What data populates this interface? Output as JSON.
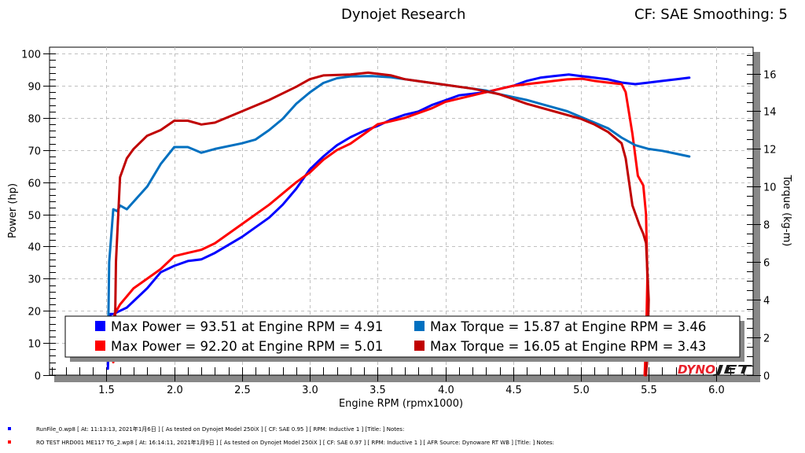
{
  "header": {
    "title": "Dynojet Research",
    "correction": "CF: SAE Smoothing: 5"
  },
  "logo": {
    "text_red": "DYNO",
    "text_black": "JET"
  },
  "chart_data": {
    "type": "line",
    "title": "Dynojet Research",
    "subtitle": "CF: SAE Smoothing: 5",
    "xlabel": "Engine RPM (rpmx1000)",
    "ylabel": "Power (hp)",
    "y2label": "Torque (kg-m)",
    "xlim": [
      1.08,
      6.27
    ],
    "ylim": [
      0,
      102
    ],
    "y2lim": [
      0,
      17.4
    ],
    "x_ticks": [
      1.5,
      2.0,
      2.5,
      3.0,
      3.5,
      4.0,
      4.5,
      5.0,
      5.5,
      6.0
    ],
    "x_tick_labels": [
      "1.5",
      "2.0",
      "2.5",
      "3.0",
      "3.5",
      "4.0",
      "4.5",
      "5.0",
      "5.5",
      "6.0"
    ],
    "y_ticks": [
      0,
      10,
      20,
      30,
      40,
      50,
      60,
      70,
      80,
      90,
      100
    ],
    "y_tick_labels": [
      "0",
      "10",
      "20",
      "30",
      "40",
      "50",
      "60",
      "70",
      "80",
      "90",
      "100"
    ],
    "y2_ticks": [
      0,
      2,
      4,
      6,
      8,
      10,
      12,
      14,
      16
    ],
    "y2_tick_labels": [
      "0",
      "2",
      "4",
      "6",
      "8",
      "10",
      "12",
      "14",
      "16"
    ],
    "grid": true,
    "legend_position": "bottom-center",
    "series": [
      {
        "name": "Power - RunFile_0",
        "axis": "left",
        "color": "#0000ff",
        "x": [
          1.51,
          1.52,
          1.53,
          1.55,
          1.6,
          1.65,
          1.7,
          1.8,
          1.9,
          2.0,
          2.1,
          2.2,
          2.3,
          2.5,
          2.7,
          2.8,
          2.9,
          3.0,
          3.1,
          3.2,
          3.3,
          3.4,
          3.5,
          3.6,
          3.7,
          3.8,
          3.9,
          4.0,
          4.1,
          4.2,
          4.3,
          4.4,
          4.5,
          4.6,
          4.7,
          4.8,
          4.91,
          5.0,
          5.1,
          5.2,
          5.3,
          5.4,
          5.5,
          5.6,
          5.7,
          5.8
        ],
        "y": [
          2,
          15,
          19,
          19,
          20,
          21,
          23,
          27,
          32,
          34,
          35.5,
          36,
          38,
          43,
          49,
          53,
          58,
          64,
          68,
          71.5,
          74,
          76,
          77.5,
          79.5,
          81,
          82,
          84,
          85.5,
          87,
          87.5,
          88,
          89,
          90,
          91.5,
          92.5,
          93,
          93.5,
          93,
          92.5,
          92,
          91,
          90.5,
          91,
          91.5,
          92,
          92.5
        ]
      },
      {
        "name": "Power - RO TEST HRD001 ME117 TG_2",
        "axis": "left",
        "color": "#ff0000",
        "x": [
          1.55,
          1.56,
          1.6,
          1.7,
          1.8,
          1.9,
          2.0,
          2.1,
          2.2,
          2.3,
          2.5,
          2.7,
          2.9,
          3.0,
          3.1,
          3.2,
          3.3,
          3.4,
          3.5,
          3.6,
          3.7,
          3.8,
          3.9,
          4.0,
          4.1,
          4.2,
          4.3,
          4.4,
          4.5,
          4.6,
          4.7,
          4.8,
          4.9,
          5.01,
          5.1,
          5.2,
          5.3,
          5.33,
          5.38,
          5.42,
          5.46,
          5.48,
          5.49,
          5.48,
          5.47
        ],
        "y": [
          4,
          19,
          22,
          27,
          30,
          33,
          37,
          38,
          39,
          41,
          47,
          53,
          60,
          63,
          67,
          70,
          72,
          75,
          78,
          79,
          80,
          81.5,
          83,
          85,
          86,
          87,
          88,
          89,
          90,
          90.5,
          91,
          91.5,
          92,
          92.2,
          91.5,
          91,
          90.5,
          88,
          75,
          62,
          59,
          50,
          30,
          10,
          0
        ]
      },
      {
        "name": "Torque - RunFile_0",
        "axis": "right",
        "color": "#0070c0",
        "x": [
          1.51,
          1.52,
          1.55,
          1.58,
          1.6,
          1.65,
          1.7,
          1.8,
          1.9,
          2.0,
          2.1,
          2.2,
          2.3,
          2.5,
          2.6,
          2.7,
          2.8,
          2.9,
          3.0,
          3.1,
          3.2,
          3.3,
          3.46,
          3.6,
          3.7,
          3.8,
          3.9,
          4.0,
          4.1,
          4.2,
          4.3,
          4.4,
          4.5,
          4.6,
          4.7,
          4.8,
          4.9,
          5.0,
          5.1,
          5.2,
          5.3,
          5.4,
          5.5,
          5.6,
          5.7,
          5.8
        ],
        "y": [
          1,
          6,
          8.8,
          8.7,
          9,
          8.8,
          9.2,
          10,
          11.2,
          12.1,
          12.1,
          11.8,
          12,
          12.3,
          12.5,
          13,
          13.6,
          14.4,
          15,
          15.5,
          15.75,
          15.85,
          15.87,
          15.8,
          15.7,
          15.6,
          15.5,
          15.4,
          15.3,
          15.2,
          15.1,
          14.9,
          14.75,
          14.6,
          14.4,
          14.2,
          14.0,
          13.7,
          13.4,
          13.1,
          12.6,
          12.2,
          12.0,
          11.9,
          11.75,
          11.6
        ]
      },
      {
        "name": "Torque - RO TEST HRD001 ME117 TG_2",
        "axis": "right",
        "color": "#c00000",
        "x": [
          1.56,
          1.57,
          1.6,
          1.65,
          1.7,
          1.8,
          1.9,
          2.0,
          2.1,
          2.2,
          2.3,
          2.5,
          2.7,
          2.9,
          3.0,
          3.1,
          3.3,
          3.43,
          3.6,
          3.7,
          3.8,
          4.0,
          4.2,
          4.4,
          4.6,
          4.8,
          5.0,
          5.1,
          5.2,
          5.3,
          5.33,
          5.38,
          5.43,
          5.46,
          5.48,
          5.5,
          5.49,
          5.48
        ],
        "y": [
          1,
          6,
          10.5,
          11.5,
          12,
          12.7,
          13.0,
          13.5,
          13.5,
          13.3,
          13.4,
          14.0,
          14.6,
          15.3,
          15.7,
          15.9,
          15.95,
          16.05,
          15.9,
          15.7,
          15.6,
          15.4,
          15.2,
          14.9,
          14.4,
          14.0,
          13.6,
          13.3,
          12.9,
          12.3,
          11.5,
          9.0,
          8.0,
          7.5,
          7.0,
          4.0,
          1.0,
          0
        ]
      }
    ],
    "legend": [
      {
        "color": "#0000ff",
        "text": "Max Power = 93.51 at Engine RPM = 4.91"
      },
      {
        "color": "#ff0000",
        "text": "Max Power = 92.20 at Engine RPM = 5.01"
      },
      {
        "color": "#0070c0",
        "text": "Max Torque = 15.87 at Engine RPM = 3.46"
      },
      {
        "color": "#c00000",
        "text": "Max Torque = 16.05 at Engine RPM = 3.43"
      }
    ]
  },
  "footer": [
    {
      "color": "#0000ff",
      "text": "RunFile_0.wp8  [  At:  11:13:13,  2021年1月6日  ] [ As tested on Dynojet Model 250iX ] [  CF:  SAE 0.95  ] [  RPM:  Inductive 1  ] [Title:  ]   Notes:"
    },
    {
      "color": "#ff0000",
      "text": "RO  TEST  HRD001  ME117  TG_2.wp8  [  At:  16:14:11,  2021年1月9日  ] [ As tested on Dynojet Model 250iX ] [  CF:  SAE 0.97  ] [  RPM:  Inductive 1  ] [  AFR Source:  Dynoware RT WB  ] [Title:  ]   Notes:"
    }
  ]
}
